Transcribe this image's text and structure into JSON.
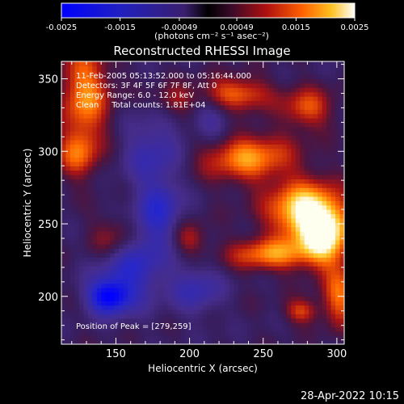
{
  "chart_data": {
    "type": "heatmap",
    "title": "Reconstructed RHESSI Image",
    "xlabel": "Heliocentric X (arcsec)",
    "ylabel": "Heliocentric Y (arcsec)",
    "xlim": [
      113,
      305
    ],
    "ylim": [
      167,
      362
    ],
    "xticks": [
      150,
      200,
      250,
      300
    ],
    "yticks": [
      200,
      250,
      300,
      350
    ],
    "colorbar": {
      "min": -0.0025,
      "max": 0.0025,
      "tick_values": [
        -0.0025,
        -0.0015,
        -0.00049,
        0.00049,
        0.0015,
        0.0025
      ],
      "tick_labels": [
        "-0.0025",
        "-0.0015",
        "-0.00049",
        "0.00049",
        "0.0015",
        "0.0025"
      ],
      "unit_label": "(photons cm⁻² s⁻¹ asec⁻²)"
    },
    "info": {
      "time_range": "11-Feb-2005 05:13:52.000 to 05:16:44.000",
      "detectors": "Detectors: 3F 4F 5F 6F 7F 8F, Att 0",
      "energy": "Energy Range: 6.0 - 12.0 keV",
      "clean": "Clean     Total counts: 1.81E+04"
    },
    "peak_label": "Position of Peak = [279,259]",
    "peak": [
      279,
      259
    ],
    "hotspots": [
      {
        "x": 279,
        "y": 259,
        "sx": 18,
        "sy": 14,
        "v": 0.0025
      },
      {
        "x": 292,
        "y": 240,
        "sx": 12,
        "sy": 14,
        "v": 0.0021
      },
      {
        "x": 255,
        "y": 229,
        "sx": 20,
        "sy": 8,
        "v": 0.0016
      },
      {
        "x": 240,
        "y": 296,
        "sx": 22,
        "sy": 12,
        "v": 0.0017
      },
      {
        "x": 232,
        "y": 340,
        "sx": 16,
        "sy": 8,
        "v": 0.0015
      },
      {
        "x": 280,
        "y": 330,
        "sx": 12,
        "sy": 10,
        "v": 0.0013
      },
      {
        "x": 129,
        "y": 340,
        "sx": 12,
        "sy": 24,
        "v": 0.0017
      },
      {
        "x": 124,
        "y": 298,
        "sx": 10,
        "sy": 12,
        "v": 0.0012
      },
      {
        "x": 150,
        "y": 240,
        "sx": 12,
        "sy": 12,
        "v": 0.0014
      },
      {
        "x": 302,
        "y": 200,
        "sx": 8,
        "sy": 14,
        "v": 0.0015
      },
      {
        "x": 276,
        "y": 190,
        "sx": 8,
        "sy": 6,
        "v": 0.0012
      },
      {
        "x": 190,
        "y": 335,
        "sx": 10,
        "sy": 8,
        "v": 0.0008
      },
      {
        "x": 200,
        "y": 240,
        "sx": 8,
        "sy": 8,
        "v": 0.0009
      }
    ],
    "coldspots": [
      {
        "x": 160,
        "y": 225,
        "sx": 16,
        "sy": 20,
        "v": -0.0016
      },
      {
        "x": 145,
        "y": 200,
        "sx": 10,
        "sy": 8,
        "v": -0.0022
      },
      {
        "x": 175,
        "y": 300,
        "sx": 14,
        "sy": 18,
        "v": -0.001
      },
      {
        "x": 205,
        "y": 205,
        "sx": 12,
        "sy": 12,
        "v": -0.001
      },
      {
        "x": 215,
        "y": 320,
        "sx": 10,
        "sy": 10,
        "v": -0.0008
      },
      {
        "x": 180,
        "y": 260,
        "sx": 10,
        "sy": 14,
        "v": -0.0012
      }
    ]
  },
  "timestamp": "28-Apr-2022 10:15"
}
